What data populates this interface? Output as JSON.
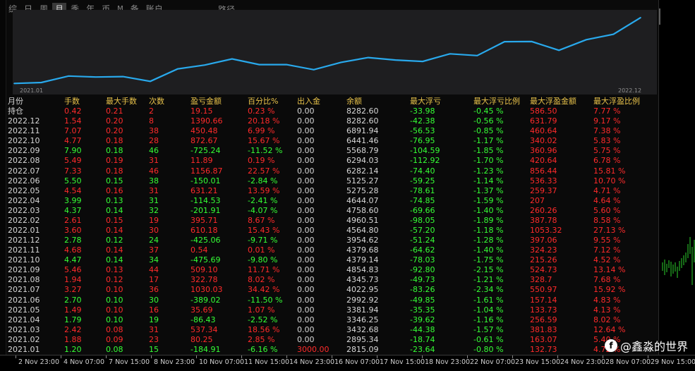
{
  "tabs": [
    {
      "label": "综",
      "active": false
    },
    {
      "label": "日",
      "active": false
    },
    {
      "label": "周",
      "active": false
    },
    {
      "label": "月",
      "active": true
    },
    {
      "label": "季",
      "active": false
    },
    {
      "label": "年",
      "active": false
    },
    {
      "label": "币",
      "active": false
    },
    {
      "label": "M",
      "active": false
    },
    {
      "label": "备",
      "active": false
    },
    {
      "label": "账户",
      "active": false
    }
  ],
  "path_tab": "路径",
  "chart_data": {
    "type": "line",
    "x_labels": {
      "start": "2021.01",
      "end": "2022.12"
    },
    "series": [
      {
        "color": "#29a9ec",
        "values": [
          2815.09,
          2895.34,
          3432.68,
          3346.25,
          3381.94,
          2992.92,
          4022.95,
          4345.73,
          4854.83,
          4379.14,
          4379.68,
          3954.62,
          4564.8,
          4960.51,
          4758.6,
          4644.07,
          5275.28,
          5125.27,
          6282.14,
          6294.03,
          5568.79,
          6441.46,
          6891.94,
          8282.6
        ]
      }
    ]
  },
  "table": {
    "headers": [
      "月份",
      "手数",
      "最大手数",
      "次数",
      "盈亏金额",
      "百分比%",
      "出入金",
      "余额",
      "最大浮亏",
      "最大浮亏比例",
      "最大浮盈金额",
      "最大浮盈比例"
    ],
    "rows": [
      [
        "持仓",
        "0.42",
        "0.21",
        "2",
        "19.15",
        "0.23 %",
        "0.00",
        "8282.60",
        "-33.98",
        "-0.45 %",
        "586.50",
        "7.77 %"
      ],
      [
        "2022.12",
        "1.54",
        "0.20",
        "8",
        "1390.66",
        "20.18 %",
        "0.00",
        "8282.60",
        "-42.38",
        "-0.56 %",
        "631.79",
        "9.17 %"
      ],
      [
        "2022.11",
        "7.07",
        "0.20",
        "38",
        "450.48",
        "6.99 %",
        "0.00",
        "6891.94",
        "-56.53",
        "-0.85 %",
        "460.64",
        "7.38 %"
      ],
      [
        "2022.10",
        "4.77",
        "0.18",
        "28",
        "872.67",
        "15.67 %",
        "0.00",
        "6441.46",
        "-76.95",
        "-1.17 %",
        "340.02",
        "5.83 %"
      ],
      [
        "2022.09",
        "7.90",
        "0.18",
        "46",
        "-725.24",
        "-11.52 %",
        "0.00",
        "5568.79",
        "-104.59",
        "-1.85 %",
        "360.96",
        "5.75 %"
      ],
      [
        "2022.08",
        "5.49",
        "0.19",
        "31",
        "11.89",
        "0.19 %",
        "0.00",
        "6294.03",
        "-112.92",
        "-1.70 %",
        "420.64",
        "6.78 %"
      ],
      [
        "2022.07",
        "7.33",
        "0.18",
        "46",
        "1156.87",
        "22.57 %",
        "0.00",
        "6282.14",
        "-74.40",
        "-1.23 %",
        "856.44",
        "15.81 %"
      ],
      [
        "2022.06",
        "5.50",
        "0.15",
        "38",
        "-150.01",
        "-2.84 %",
        "0.00",
        "5125.27",
        "-59.25",
        "-1.14 %",
        "536.33",
        "10.70 %"
      ],
      [
        "2022.05",
        "4.54",
        "0.16",
        "31",
        "631.21",
        "13.59 %",
        "0.00",
        "5275.28",
        "-78.61",
        "-1.37 %",
        "259.37",
        "4.71 %"
      ],
      [
        "2022.04",
        "3.99",
        "0.13",
        "31",
        "-114.53",
        "-2.41 %",
        "0.00",
        "4644.07",
        "-74.85",
        "-1.59 %",
        "207",
        "4.64 %"
      ],
      [
        "2022.03",
        "4.37",
        "0.14",
        "32",
        "-201.91",
        "-4.07 %",
        "0.00",
        "4758.60",
        "-69.66",
        "-1.40 %",
        "260.26",
        "5.60 %"
      ],
      [
        "2022.02",
        "2.61",
        "0.15",
        "19",
        "395.71",
        "8.67 %",
        "0.00",
        "4960.51",
        "-98.05",
        "-1.89 %",
        "387.78",
        "8.58 %"
      ],
      [
        "2022.01",
        "3.60",
        "0.14",
        "30",
        "610.18",
        "15.43 %",
        "0.00",
        "4564.80",
        "-57.20",
        "-1.18 %",
        "1053.32",
        "27.13 %"
      ],
      [
        "2021.12",
        "2.78",
        "0.12",
        "24",
        "-425.06",
        "-9.71 %",
        "0.00",
        "3954.62",
        "-51.24",
        "-1.28 %",
        "397.06",
        "9.55 %"
      ],
      [
        "2021.11",
        "4.68",
        "0.14",
        "37",
        "0.54",
        "0.01 %",
        "0.00",
        "4379.68",
        "-64.62",
        "-1.40 %",
        "324.23",
        "7.12 %"
      ],
      [
        "2021.10",
        "4.47",
        "0.14",
        "34",
        "-475.69",
        "-9.80 %",
        "0.00",
        "4379.14",
        "-78.03",
        "-1.75 %",
        "215.26",
        "4.52 %"
      ],
      [
        "2021.09",
        "5.46",
        "0.13",
        "44",
        "509.10",
        "11.71 %",
        "0.00",
        "4854.83",
        "-92.80",
        "-2.15 %",
        "524.73",
        "13.14 %"
      ],
      [
        "2021.08",
        "1.94",
        "0.12",
        "17",
        "322.78",
        "8.02 %",
        "0.00",
        "4345.73",
        "-49.73",
        "-1.21 %",
        "328.7",
        "7.68 %"
      ],
      [
        "2021.07",
        "3.27",
        "0.10",
        "36",
        "1030.03",
        "34.42 %",
        "0.00",
        "4022.95",
        "-83.26",
        "-2.34 %",
        "550.97",
        "15.92 %"
      ],
      [
        "2021.06",
        "2.70",
        "0.10",
        "30",
        "-389.02",
        "-11.50 %",
        "0.00",
        "2992.92",
        "-49.85",
        "-1.61 %",
        "157.14",
        "4.83 %"
      ],
      [
        "2021.05",
        "1.49",
        "0.10",
        "16",
        "35.69",
        "1.07 %",
        "0.00",
        "3381.94",
        "-35.35",
        "-1.04 %",
        "133.73",
        "4.13 %"
      ],
      [
        "2021.04",
        "1.79",
        "0.10",
        "19",
        "-86.43",
        "-2.52 %",
        "0.00",
        "3346.25",
        "-39.62",
        "-1.16 %",
        "256.59",
        "8.02 %"
      ],
      [
        "2021.03",
        "2.42",
        "0.08",
        "31",
        "537.34",
        "18.56 %",
        "0.00",
        "3432.68",
        "-44.38",
        "-1.57 %",
        "381.83",
        "12.64 %"
      ],
      [
        "2021.02",
        "1.88",
        "0.09",
        "23",
        "80.25",
        "2.85 %",
        "0.00",
        "2895.34",
        "-18.74",
        "-0.61 %",
        "163.07",
        "5.40 %"
      ],
      [
        "2021.01",
        "1.20",
        "0.08",
        "15",
        "-184.91",
        "-6.16 %",
        "3000.00",
        "2815.09",
        "-23.64",
        "-0.80 %",
        "132.73",
        "4.72 %"
      ]
    ]
  },
  "time_axis": [
    "2 Nov 23:00",
    "4 Nov 07:00",
    "7 Nov 15:00",
    "8 Nov 23:00",
    "10 Nov 07:00",
    "11 Nov 15:00",
    "14 Nov 23:00",
    "16 Nov 07:00",
    "17 Nov 15:00",
    "18 Nov 23:00",
    "22 Nov 07:00",
    "23 Nov 15:00",
    "24 Nov 23:00",
    "28 Nov 07:00",
    "29 Nov 15:00"
  ],
  "watermark": {
    "logo": "f",
    "text": "@鑫淼的世界"
  },
  "colors": {
    "red": "#ff2b2b",
    "green": "#35ff35",
    "header": "#e8c24a",
    "line": "#29a9ec"
  }
}
